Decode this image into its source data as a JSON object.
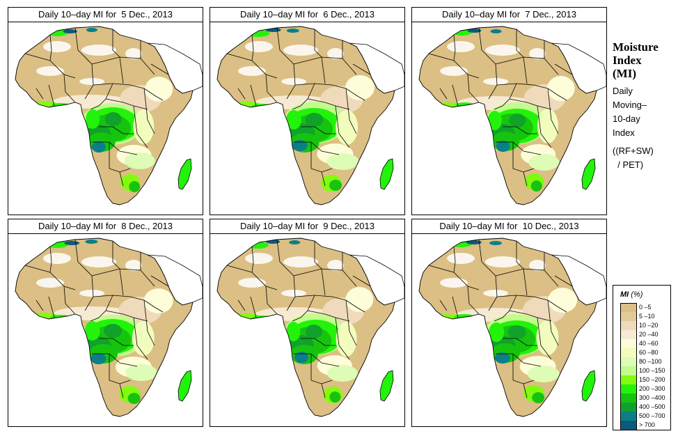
{
  "panels": [
    {
      "title": "Daily 10–day MI for  5 Dec., 2013",
      "variant": 0
    },
    {
      "title": "Daily 10–day MI for  6 Dec., 2013",
      "variant": 1
    },
    {
      "title": "Daily 10–day MI for  7 Dec., 2013",
      "variant": 2
    },
    {
      "title": "Daily 10–day MI for  8 Dec., 2013",
      "variant": 3
    },
    {
      "title": "Daily 10–day MI for  9 Dec., 2013",
      "variant": 4
    },
    {
      "title": "Daily 10–day MI for  10 Dec., 2013",
      "variant": 5
    }
  ],
  "side": {
    "heading": [
      "Moisture",
      "Index",
      "(MI)"
    ],
    "desc": [
      "Daily",
      "Moving–",
      "10-day",
      "Index"
    ],
    "formula": [
      "((RF+SW)",
      "  / PET)"
    ]
  },
  "legend": {
    "title_abbr": "MI",
    "title_unit": " (%)",
    "items": [
      {
        "label": "0 –5",
        "color": "#dbbf84"
      },
      {
        "label": "5 –10",
        "color": "#e3cb99"
      },
      {
        "label": "10 –20",
        "color": "#efdbbb"
      },
      {
        "label": "20 –40",
        "color": "#f7ead3"
      },
      {
        "label": "40 –60",
        "color": "#fdfdd9"
      },
      {
        "label": "60 –80",
        "color": "#f1fcbd"
      },
      {
        "label": "80 –100",
        "color": "#ddfcb5"
      },
      {
        "label": "100 –150",
        "color": "#c2fc8d"
      },
      {
        "label": "150 –200",
        "color": "#82fb10"
      },
      {
        "label": "200 –300",
        "color": "#23f30a"
      },
      {
        "label": "300 –400",
        "color": "#16c40e"
      },
      {
        "label": "400 –500",
        "color": "#10a22a"
      },
      {
        "label": "500 –700",
        "color": "#0a7f88"
      },
      {
        "label": "> 700",
        "color": "#0b5a7d"
      }
    ]
  }
}
